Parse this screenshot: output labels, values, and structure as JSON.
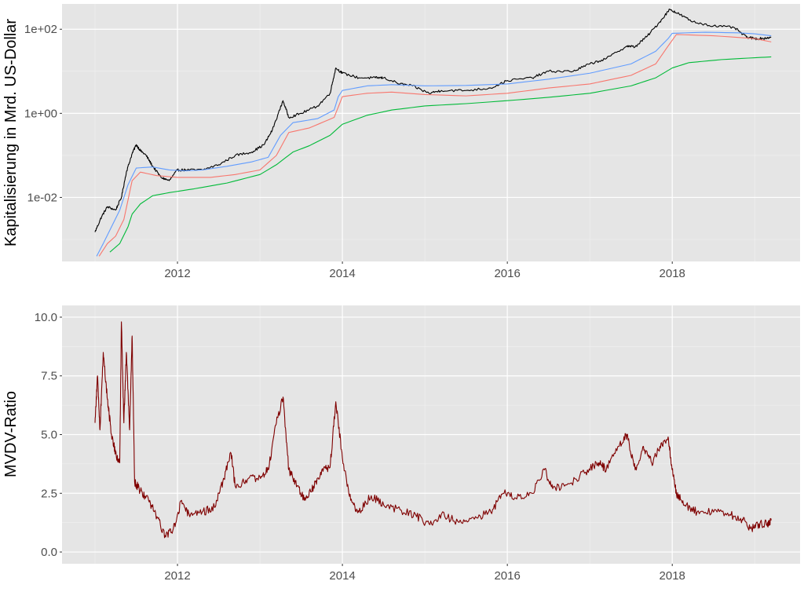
{
  "chart_data": [
    {
      "type": "line",
      "title": "",
      "xlabel": "",
      "ylabel": "Kapitalisierung in Mrd. US-Dollar",
      "yscale": "log10",
      "ylim": [
        0.0003,
        400
      ],
      "xlim": [
        2010.6,
        2019.55
      ],
      "grid": true,
      "legend": "none",
      "x_ticks": [
        {
          "value": 2012,
          "label": "2012"
        },
        {
          "value": 2014,
          "label": "2014"
        },
        {
          "value": 2016,
          "label": "2016"
        },
        {
          "value": 2018,
          "label": "2018"
        }
      ],
      "y_ticks": [
        {
          "value": 0.01,
          "label": "1e-02"
        },
        {
          "value": 1,
          "label": "1e+00"
        },
        {
          "value": 100,
          "label": "1e+02"
        }
      ],
      "series": [
        {
          "color": "#000000",
          "noise": 0.06,
          "points": [
            [
              2011.0,
              0.0015
            ],
            [
              2011.08,
              0.0035
            ],
            [
              2011.15,
              0.006
            ],
            [
              2011.25,
              0.005
            ],
            [
              2011.32,
              0.01
            ],
            [
              2011.38,
              0.04
            ],
            [
              2011.45,
              0.11
            ],
            [
              2011.5,
              0.18
            ],
            [
              2011.55,
              0.13
            ],
            [
              2011.62,
              0.1
            ],
            [
              2011.7,
              0.055
            ],
            [
              2011.8,
              0.03
            ],
            [
              2011.9,
              0.025
            ],
            [
              2012.0,
              0.045
            ],
            [
              2012.1,
              0.045
            ],
            [
              2012.3,
              0.045
            ],
            [
              2012.5,
              0.06
            ],
            [
              2012.7,
              0.1
            ],
            [
              2012.9,
              0.12
            ],
            [
              2013.05,
              0.18
            ],
            [
              2013.15,
              0.4
            ],
            [
              2013.28,
              2.0
            ],
            [
              2013.35,
              0.8
            ],
            [
              2013.5,
              1.0
            ],
            [
              2013.7,
              1.5
            ],
            [
              2013.85,
              3.0
            ],
            [
              2013.92,
              12.0
            ],
            [
              2014.0,
              9.0
            ],
            [
              2014.2,
              7.0
            ],
            [
              2014.4,
              7.0
            ],
            [
              2014.5,
              7.0
            ],
            [
              2014.7,
              5.0
            ],
            [
              2014.85,
              4.5
            ],
            [
              2015.05,
              3.0
            ],
            [
              2015.2,
              3.5
            ],
            [
              2015.5,
              3.5
            ],
            [
              2015.8,
              4.0
            ],
            [
              2016.0,
              6.0
            ],
            [
              2016.3,
              7.0
            ],
            [
              2016.5,
              10.0
            ],
            [
              2016.8,
              10.0
            ],
            [
              2017.0,
              15.0
            ],
            [
              2017.2,
              20.0
            ],
            [
              2017.45,
              40.0
            ],
            [
              2017.55,
              38.0
            ],
            [
              2017.7,
              70.0
            ],
            [
              2017.85,
              150.0
            ],
            [
              2017.97,
              300.0
            ],
            [
              2018.1,
              220.0
            ],
            [
              2018.25,
              150.0
            ],
            [
              2018.5,
              120.0
            ],
            [
              2018.75,
              110.0
            ],
            [
              2018.9,
              65.0
            ],
            [
              2019.0,
              60.0
            ],
            [
              2019.1,
              60.0
            ],
            [
              2019.2,
              65.0
            ]
          ]
        },
        {
          "color": "#619cff",
          "noise": 0,
          "points": [
            [
              2011.02,
              0.0004
            ],
            [
              2011.1,
              0.0008
            ],
            [
              2011.2,
              0.002
            ],
            [
              2011.3,
              0.005
            ],
            [
              2011.4,
              0.02
            ],
            [
              2011.5,
              0.05
            ],
            [
              2011.7,
              0.053
            ],
            [
              2011.9,
              0.045
            ],
            [
              2012.1,
              0.043
            ],
            [
              2012.3,
              0.045
            ],
            [
              2012.6,
              0.055
            ],
            [
              2012.9,
              0.07
            ],
            [
              2013.1,
              0.09
            ],
            [
              2013.25,
              0.3
            ],
            [
              2013.4,
              0.6
            ],
            [
              2013.7,
              0.75
            ],
            [
              2013.9,
              1.2
            ],
            [
              2013.95,
              2.5
            ],
            [
              2014.0,
              3.5
            ],
            [
              2014.3,
              4.5
            ],
            [
              2014.6,
              4.8
            ],
            [
              2015.0,
              4.5
            ],
            [
              2015.5,
              4.6
            ],
            [
              2016.0,
              5.0
            ],
            [
              2016.5,
              6.5
            ],
            [
              2017.0,
              9.0
            ],
            [
              2017.5,
              15.0
            ],
            [
              2017.8,
              30.0
            ],
            [
              2017.95,
              60.0
            ],
            [
              2018.0,
              80.0
            ],
            [
              2018.4,
              85.0
            ],
            [
              2018.8,
              82.0
            ],
            [
              2019.0,
              78.0
            ],
            [
              2019.2,
              70.0
            ]
          ]
        },
        {
          "color": "#f8766d",
          "noise": 0,
          "points": [
            [
              2011.05,
              0.0004
            ],
            [
              2011.15,
              0.0008
            ],
            [
              2011.25,
              0.0012
            ],
            [
              2011.35,
              0.003
            ],
            [
              2011.45,
              0.025
            ],
            [
              2011.55,
              0.04
            ],
            [
              2011.75,
              0.033
            ],
            [
              2012.0,
              0.03
            ],
            [
              2012.4,
              0.03
            ],
            [
              2012.7,
              0.035
            ],
            [
              2013.0,
              0.045
            ],
            [
              2013.2,
              0.1
            ],
            [
              2013.35,
              0.35
            ],
            [
              2013.6,
              0.45
            ],
            [
              2013.9,
              0.8
            ],
            [
              2014.0,
              2.5
            ],
            [
              2014.3,
              3.0
            ],
            [
              2014.6,
              3.2
            ],
            [
              2015.0,
              2.8
            ],
            [
              2015.5,
              2.6
            ],
            [
              2016.0,
              3.0
            ],
            [
              2016.5,
              4.0
            ],
            [
              2017.0,
              5.0
            ],
            [
              2017.5,
              8.0
            ],
            [
              2017.8,
              15.0
            ],
            [
              2017.95,
              40.0
            ],
            [
              2018.05,
              75.0
            ],
            [
              2018.5,
              70.0
            ],
            [
              2019.0,
              60.0
            ],
            [
              2019.2,
              50.0
            ]
          ]
        },
        {
          "color": "#00ba38",
          "noise": 0,
          "points": [
            [
              2011.18,
              0.0005
            ],
            [
              2011.3,
              0.0008
            ],
            [
              2011.4,
              0.002
            ],
            [
              2011.45,
              0.004
            ],
            [
              2011.55,
              0.007
            ],
            [
              2011.7,
              0.011
            ],
            [
              2011.9,
              0.013
            ],
            [
              2012.2,
              0.016
            ],
            [
              2012.6,
              0.022
            ],
            [
              2013.0,
              0.035
            ],
            [
              2013.2,
              0.06
            ],
            [
              2013.4,
              0.12
            ],
            [
              2013.6,
              0.17
            ],
            [
              2013.85,
              0.3
            ],
            [
              2014.0,
              0.55
            ],
            [
              2014.3,
              0.9
            ],
            [
              2014.6,
              1.2
            ],
            [
              2015.0,
              1.5
            ],
            [
              2015.5,
              1.7
            ],
            [
              2016.0,
              2.0
            ],
            [
              2016.5,
              2.4
            ],
            [
              2017.0,
              3.0
            ],
            [
              2017.5,
              4.5
            ],
            [
              2017.8,
              7.0
            ],
            [
              2018.0,
              12.0
            ],
            [
              2018.2,
              16.0
            ],
            [
              2018.6,
              19.0
            ],
            [
              2019.0,
              21.0
            ],
            [
              2019.2,
              22.0
            ]
          ]
        }
      ]
    },
    {
      "type": "line",
      "title": "",
      "xlabel": "",
      "ylabel": "MVDV-Ratio",
      "yscale": "linear",
      "ylim": [
        -0.5,
        10.5
      ],
      "xlim": [
        2010.6,
        2019.55
      ],
      "grid": true,
      "legend": "none",
      "x_ticks": [
        {
          "value": 2012,
          "label": "2012"
        },
        {
          "value": 2014,
          "label": "2014"
        },
        {
          "value": 2016,
          "label": "2016"
        },
        {
          "value": 2018,
          "label": "2018"
        }
      ],
      "y_ticks": [
        {
          "value": 0,
          "label": "0.0"
        },
        {
          "value": 2.5,
          "label": "2.5"
        },
        {
          "value": 5,
          "label": "5.0"
        },
        {
          "value": 7.5,
          "label": "7.5"
        },
        {
          "value": 10,
          "label": "10.0"
        }
      ],
      "series": [
        {
          "color": "#7f0000",
          "noise": 0.18,
          "points": [
            [
              2011.0,
              5.5
            ],
            [
              2011.03,
              7.5
            ],
            [
              2011.06,
              5.2
            ],
            [
              2011.1,
              8.5
            ],
            [
              2011.15,
              6.5
            ],
            [
              2011.2,
              5.0
            ],
            [
              2011.25,
              4.2
            ],
            [
              2011.3,
              3.8
            ],
            [
              2011.32,
              9.8
            ],
            [
              2011.35,
              5.5
            ],
            [
              2011.38,
              8.5
            ],
            [
              2011.42,
              5.2
            ],
            [
              2011.45,
              9.2
            ],
            [
              2011.48,
              3.0
            ],
            [
              2011.55,
              2.6
            ],
            [
              2011.65,
              2.2
            ],
            [
              2011.75,
              1.5
            ],
            [
              2011.85,
              0.7
            ],
            [
              2011.95,
              1.0
            ],
            [
              2012.05,
              2.2
            ],
            [
              2012.15,
              1.5
            ],
            [
              2012.3,
              1.7
            ],
            [
              2012.45,
              1.9
            ],
            [
              2012.55,
              3.0
            ],
            [
              2012.65,
              4.2
            ],
            [
              2012.7,
              2.8
            ],
            [
              2012.85,
              3.1
            ],
            [
              2013.0,
              3.2
            ],
            [
              2013.1,
              3.5
            ],
            [
              2013.2,
              5.5
            ],
            [
              2013.28,
              6.6
            ],
            [
              2013.35,
              3.5
            ],
            [
              2013.45,
              2.8
            ],
            [
              2013.55,
              2.2
            ],
            [
              2013.65,
              2.8
            ],
            [
              2013.75,
              3.5
            ],
            [
              2013.85,
              3.6
            ],
            [
              2013.92,
              6.4
            ],
            [
              2014.0,
              4.0
            ],
            [
              2014.1,
              2.2
            ],
            [
              2014.2,
              1.7
            ],
            [
              2014.35,
              2.4
            ],
            [
              2014.5,
              2.0
            ],
            [
              2014.7,
              1.8
            ],
            [
              2014.9,
              1.5
            ],
            [
              2015.05,
              1.2
            ],
            [
              2015.2,
              1.6
            ],
            [
              2015.4,
              1.3
            ],
            [
              2015.6,
              1.4
            ],
            [
              2015.8,
              1.7
            ],
            [
              2015.95,
              2.5
            ],
            [
              2016.1,
              2.3
            ],
            [
              2016.3,
              2.5
            ],
            [
              2016.45,
              3.5
            ],
            [
              2016.55,
              2.7
            ],
            [
              2016.75,
              2.9
            ],
            [
              2016.95,
              3.4
            ],
            [
              2017.1,
              3.8
            ],
            [
              2017.2,
              3.5
            ],
            [
              2017.35,
              4.5
            ],
            [
              2017.45,
              5.0
            ],
            [
              2017.55,
              3.5
            ],
            [
              2017.65,
              4.5
            ],
            [
              2017.75,
              3.8
            ],
            [
              2017.85,
              4.5
            ],
            [
              2017.95,
              4.9
            ],
            [
              2018.0,
              3.5
            ],
            [
              2018.05,
              2.5
            ],
            [
              2018.15,
              2.0
            ],
            [
              2018.3,
              1.7
            ],
            [
              2018.5,
              1.7
            ],
            [
              2018.7,
              1.6
            ],
            [
              2018.85,
              1.4
            ],
            [
              2018.95,
              1.0
            ],
            [
              2019.05,
              1.2
            ],
            [
              2019.15,
              1.2
            ],
            [
              2019.2,
              1.35
            ]
          ]
        }
      ]
    }
  ]
}
